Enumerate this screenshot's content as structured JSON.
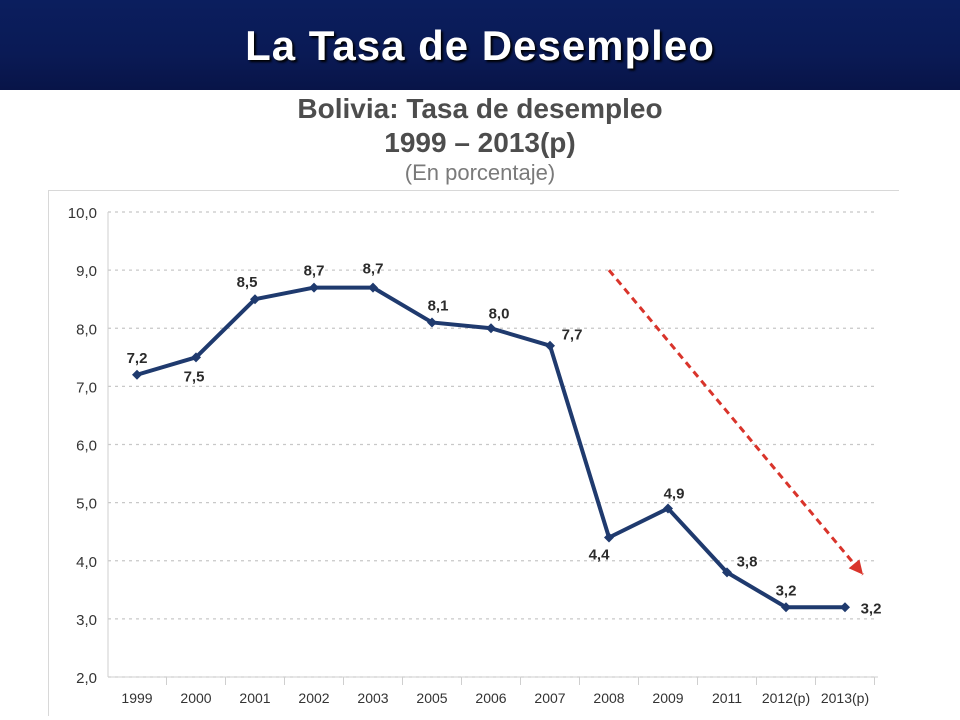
{
  "header": {
    "title": "La Tasa de Desempleo"
  },
  "colors": {
    "banner": "#0a1a55",
    "line": "#1f3a6e",
    "trend": "#d9342b",
    "grid": "#c8c8c8"
  },
  "chart_data": {
    "type": "line",
    "title": "Bolivia: Tasa de desempleo",
    "title_line2": "1999 – 2013(p)",
    "subtitle": "(En porcentaje)",
    "categories": [
      "1999",
      "2000",
      "2001",
      "2002",
      "2003",
      "2005",
      "2006",
      "2007",
      "2008",
      "2009",
      "2011",
      "2012(p)",
      "2013(p)"
    ],
    "series": [
      {
        "values": [
          7.2,
          7.5,
          8.5,
          8.7,
          8.7,
          8.1,
          8.0,
          7.7,
          4.4,
          4.9,
          3.8,
          3.2,
          3.2
        ]
      }
    ],
    "data_labels": [
      "7,2",
      "7,5",
      "8,5",
      "8,7",
      "8,7",
      "8,1",
      "8,0",
      "7,7",
      "4,4",
      "4,9",
      "3,8",
      "3,2",
      "3,2"
    ],
    "y_ticks": [
      "2,0",
      "3,0",
      "4,0",
      "5,0",
      "6,0",
      "7,0",
      "8,0",
      "9,0",
      "10,0"
    ],
    "ylim": [
      2.0,
      10.0
    ],
    "grid": true,
    "annotations": [
      {
        "kind": "trend-arrow",
        "style": "dashed",
        "color": "#d9342b",
        "from": {
          "category": "2008",
          "y": 9.0
        },
        "to": {
          "category": "2013(p)",
          "y": 3.9
        }
      }
    ]
  }
}
